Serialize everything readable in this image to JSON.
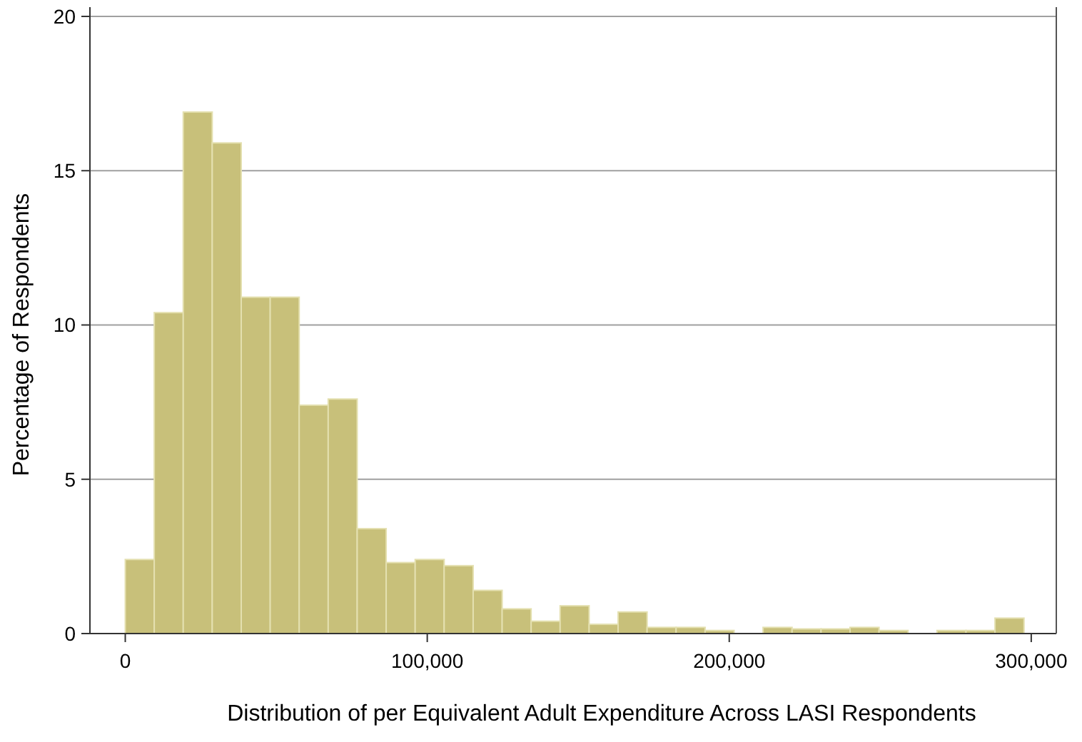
{
  "chart_data": {
    "type": "histogram",
    "xlabel": "Distribution of per Equivalent Adult Expenditure Across LASI Respondents",
    "ylabel": "Percentage of Respondents",
    "bins": [
      0,
      9600,
      19200,
      28800,
      38400,
      48000,
      57600,
      67200,
      76800,
      86400,
      96000,
      105600,
      115200,
      124800,
      134400,
      144000,
      153600,
      163200,
      172800,
      182400,
      192000,
      201600,
      211200,
      220800,
      230400,
      240000,
      249600,
      259200,
      268800,
      278400,
      288000,
      297600
    ],
    "values": [
      2.4,
      10.4,
      16.9,
      15.9,
      10.9,
      10.9,
      7.4,
      7.6,
      3.4,
      2.3,
      2.4,
      2.2,
      1.4,
      0.8,
      0.4,
      0.9,
      0.3,
      0.7,
      0.2,
      0.2,
      0.1,
      0,
      0.2,
      0.15,
      0.15,
      0.2,
      0.1,
      0,
      0.1,
      0.1,
      0.5
    ],
    "color": "#c8c07a",
    "xlim": [
      -11700,
      308300
    ],
    "xticks": [
      {
        "value": 0,
        "label": "0"
      },
      {
        "value": 100000,
        "label": "100,000"
      },
      {
        "value": 200000,
        "label": "200,000"
      },
      {
        "value": 300000,
        "label": "300,000"
      }
    ],
    "ylim": [
      0,
      20.3
    ],
    "yticks": [
      0,
      5,
      10,
      15,
      20
    ],
    "grid": "y"
  }
}
